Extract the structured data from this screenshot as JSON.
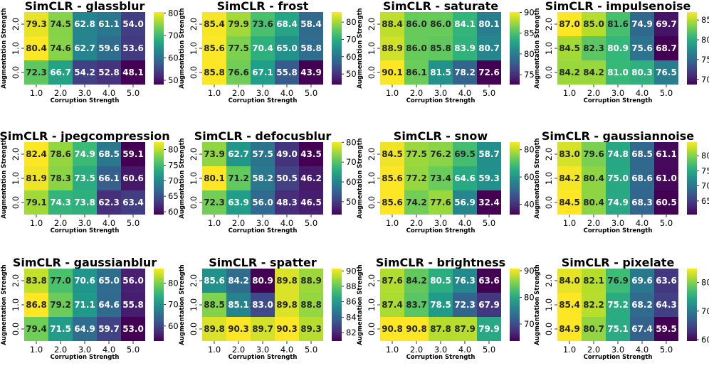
{
  "common": {
    "xlabel": "Corruption Strength",
    "ylabel": "Augmentation Strength",
    "x_ticks": [
      "1.0",
      "2.0",
      "3.0",
      "4.0",
      "5.0"
    ],
    "y_ticks_top_to_bottom": [
      "2.0",
      "1.0",
      "0.0"
    ],
    "colormap": "viridis"
  },
  "chart_data": [
    {
      "type": "heatmap",
      "title": "SimCLR - glassblur",
      "x": [
        "1.0",
        "2.0",
        "3.0",
        "4.0",
        "5.0"
      ],
      "y": [
        "2.0",
        "1.0",
        "0.0"
      ],
      "values": [
        [
          79.3,
          74.5,
          62.8,
          61.1,
          54.0
        ],
        [
          80.4,
          74.6,
          62.7,
          59.6,
          53.6
        ],
        [
          72.3,
          66.7,
          54.2,
          52.8,
          48.1
        ]
      ],
      "colorbar_ticks": [
        50,
        60,
        70,
        80
      ],
      "vmin": 48.1,
      "vmax": 80.4
    },
    {
      "type": "heatmap",
      "title": "SimCLR - frost",
      "x": [
        "1.0",
        "2.0",
        "3.0",
        "4.0",
        "5.0"
      ],
      "y": [
        "2.0",
        "1.0",
        "0.0"
      ],
      "values": [
        [
          85.4,
          79.9,
          73.6,
          68.4,
          58.4
        ],
        [
          85.6,
          77.5,
          70.4,
          65.0,
          58.8
        ],
        [
          85.8,
          76.6,
          67.1,
          55.8,
          43.9
        ]
      ],
      "colorbar_ticks": [
        50,
        60,
        70,
        80
      ],
      "vmin": 43.9,
      "vmax": 85.8
    },
    {
      "type": "heatmap",
      "title": "SimCLR - saturate",
      "x": [
        "1.0",
        "2.0",
        "3.0",
        "4.0",
        "5.0"
      ],
      "y": [
        "2.0",
        "1.0",
        "0.0"
      ],
      "values": [
        [
          88.4,
          86.0,
          86.0,
          84.1,
          80.1
        ],
        [
          88.9,
          86.0,
          85.8,
          83.9,
          80.7
        ],
        [
          90.1,
          86.1,
          81.5,
          78.2,
          72.6
        ]
      ],
      "colorbar_ticks": [
        75,
        80,
        85,
        90
      ],
      "vmin": 72.6,
      "vmax": 90.1
    },
    {
      "type": "heatmap",
      "title": "SimCLR - impulsenoise",
      "x": [
        "1.0",
        "2.0",
        "3.0",
        "4.0",
        "5.0"
      ],
      "y": [
        "2.0",
        "1.0",
        "0.0"
      ],
      "values": [
        [
          87.0,
          85.0,
          81.6,
          74.9,
          69.7
        ],
        [
          84.5,
          82.3,
          80.9,
          75.6,
          68.7
        ],
        [
          84.2,
          84.2,
          81.0,
          80.3,
          76.5
        ]
      ],
      "colorbar_ticks": [
        70,
        75,
        80,
        85
      ],
      "vmin": 68.7,
      "vmax": 87.0
    },
    {
      "type": "heatmap",
      "title": "SimCLR - jpegcompression",
      "x": [
        "1.0",
        "2.0",
        "3.0",
        "4.0",
        "5.0"
      ],
      "y": [
        "2.0",
        "1.0",
        "0.0"
      ],
      "values": [
        [
          82.4,
          78.6,
          74.9,
          68.5,
          59.1
        ],
        [
          81.9,
          78.3,
          73.5,
          66.1,
          60.6
        ],
        [
          79.1,
          74.3,
          73.8,
          62.3,
          63.4
        ]
      ],
      "colorbar_ticks": [
        60,
        65,
        70,
        75,
        80
      ],
      "vmin": 59.1,
      "vmax": 82.4
    },
    {
      "type": "heatmap",
      "title": "SimCLR - defocusblur",
      "x": [
        "1.0",
        "2.0",
        "3.0",
        "4.0",
        "5.0"
      ],
      "y": [
        "2.0",
        "1.0",
        "0.0"
      ],
      "values": [
        [
          73.9,
          62.7,
          57.5,
          49.0,
          43.5
        ],
        [
          80.1,
          71.2,
          58.2,
          50.5,
          46.2
        ],
        [
          72.3,
          63.9,
          56.0,
          48.3,
          46.5
        ]
      ],
      "colorbar_ticks": [
        50,
        60,
        70,
        80
      ],
      "vmin": 43.5,
      "vmax": 80.1
    },
    {
      "type": "heatmap",
      "title": "SimCLR - snow",
      "x": [
        "1.0",
        "2.0",
        "3.0",
        "4.0",
        "5.0"
      ],
      "y": [
        "2.0",
        "1.0",
        "0.0"
      ],
      "values": [
        [
          84.5,
          77.5,
          76.2,
          69.5,
          58.7
        ],
        [
          85.6,
          77.2,
          73.4,
          64.6,
          59.3
        ],
        [
          85.6,
          74.2,
          77.6,
          56.9,
          32.4
        ]
      ],
      "colorbar_ticks": [
        40,
        60,
        80
      ],
      "vmin": 32.4,
      "vmax": 85.6
    },
    {
      "type": "heatmap",
      "title": "SimCLR - gaussiannoise",
      "x": [
        "1.0",
        "2.0",
        "3.0",
        "4.0",
        "5.0"
      ],
      "y": [
        "2.0",
        "1.0",
        "0.0"
      ],
      "values": [
        [
          83.0,
          79.6,
          74.8,
          68.5,
          61.1
        ],
        [
          84.2,
          80.4,
          75.0,
          68.6,
          61.0
        ],
        [
          84.5,
          80.4,
          74.9,
          68.3,
          60.5
        ]
      ],
      "colorbar_ticks": [
        65,
        70,
        75,
        80
      ],
      "vmin": 60.5,
      "vmax": 84.5
    },
    {
      "type": "heatmap",
      "title": "SimCLR - gaussianblur",
      "x": [
        "1.0",
        "2.0",
        "3.0",
        "4.0",
        "5.0"
      ],
      "y": [
        "2.0",
        "1.0",
        "0.0"
      ],
      "values": [
        [
          83.8,
          77.0,
          70.6,
          65.0,
          56.0
        ],
        [
          86.8,
          79.2,
          71.1,
          64.6,
          55.8
        ],
        [
          79.4,
          71.5,
          64.9,
          59.7,
          53.0
        ]
      ],
      "colorbar_ticks": [
        60,
        70,
        80
      ],
      "vmin": 53.0,
      "vmax": 86.8
    },
    {
      "type": "heatmap",
      "title": "SimCLR - spatter",
      "x": [
        "1.0",
        "2.0",
        "3.0",
        "4.0",
        "5.0"
      ],
      "y": [
        "2.0",
        "1.0",
        "0.0"
      ],
      "values": [
        [
          85.6,
          84.2,
          80.9,
          89.8,
          88.9
        ],
        [
          88.5,
          85.1,
          83.0,
          89.8,
          88.8
        ],
        [
          89.8,
          90.3,
          89.7,
          90.3,
          89.3
        ]
      ],
      "colorbar_ticks": [
        82,
        84,
        86,
        88,
        90
      ],
      "vmin": 80.9,
      "vmax": 90.3
    },
    {
      "type": "heatmap",
      "title": "SimCLR - brightness",
      "x": [
        "1.0",
        "2.0",
        "3.0",
        "4.0",
        "5.0"
      ],
      "y": [
        "2.0",
        "1.0",
        "0.0"
      ],
      "values": [
        [
          87.6,
          84.2,
          80.5,
          76.3,
          63.6
        ],
        [
          87.4,
          83.7,
          78.5,
          72.3,
          67.9
        ],
        [
          90.8,
          90.8,
          87.8,
          87.9,
          79.9
        ]
      ],
      "colorbar_ticks": [
        70,
        80,
        90
      ],
      "vmin": 63.6,
      "vmax": 90.8
    },
    {
      "type": "heatmap",
      "title": "SimCLR - pixelate",
      "x": [
        "1.0",
        "2.0",
        "3.0",
        "4.0",
        "5.0"
      ],
      "y": [
        "2.0",
        "1.0",
        "0.0"
      ],
      "values": [
        [
          84.0,
          82.1,
          76.9,
          69.6,
          63.6
        ],
        [
          85.4,
          82.2,
          75.2,
          68.2,
          64.3
        ],
        [
          84.9,
          80.7,
          75.1,
          67.4,
          59.5
        ]
      ],
      "colorbar_ticks": [
        60,
        70,
        80
      ],
      "vmin": 59.5,
      "vmax": 84.9
    }
  ]
}
